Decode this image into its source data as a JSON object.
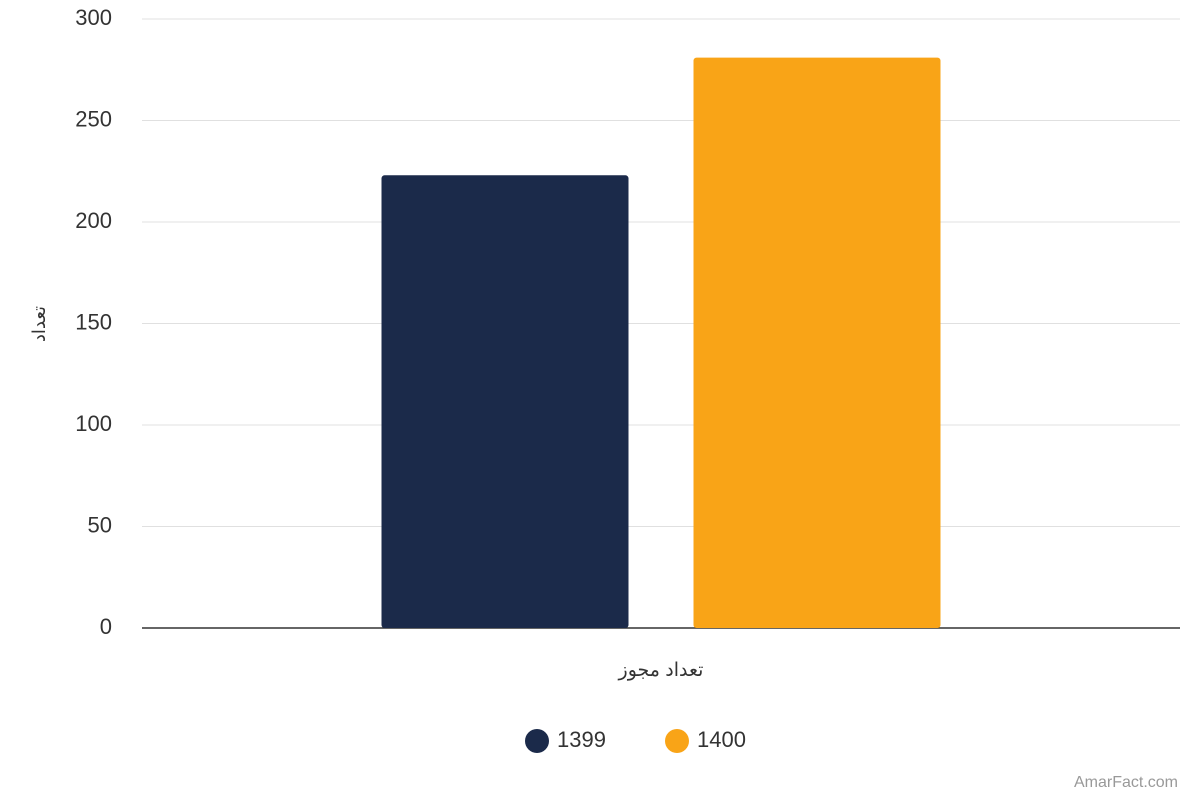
{
  "chart_data": {
    "type": "bar",
    "x_label": "تعداد مجوز",
    "y_label": "تعداد",
    "categories": [
      "تعداد مجوز"
    ],
    "series": [
      {
        "name": "1399",
        "color": "#1b2a4a",
        "values": [
          223
        ]
      },
      {
        "name": "1400",
        "color": "#f9a417",
        "values": [
          281
        ]
      }
    ],
    "ylim": [
      0,
      300
    ],
    "yticks": [
      0,
      50,
      100,
      150,
      200,
      250,
      300
    ],
    "grid": true,
    "legend": "bottom",
    "credit": "AmarFact.com"
  }
}
